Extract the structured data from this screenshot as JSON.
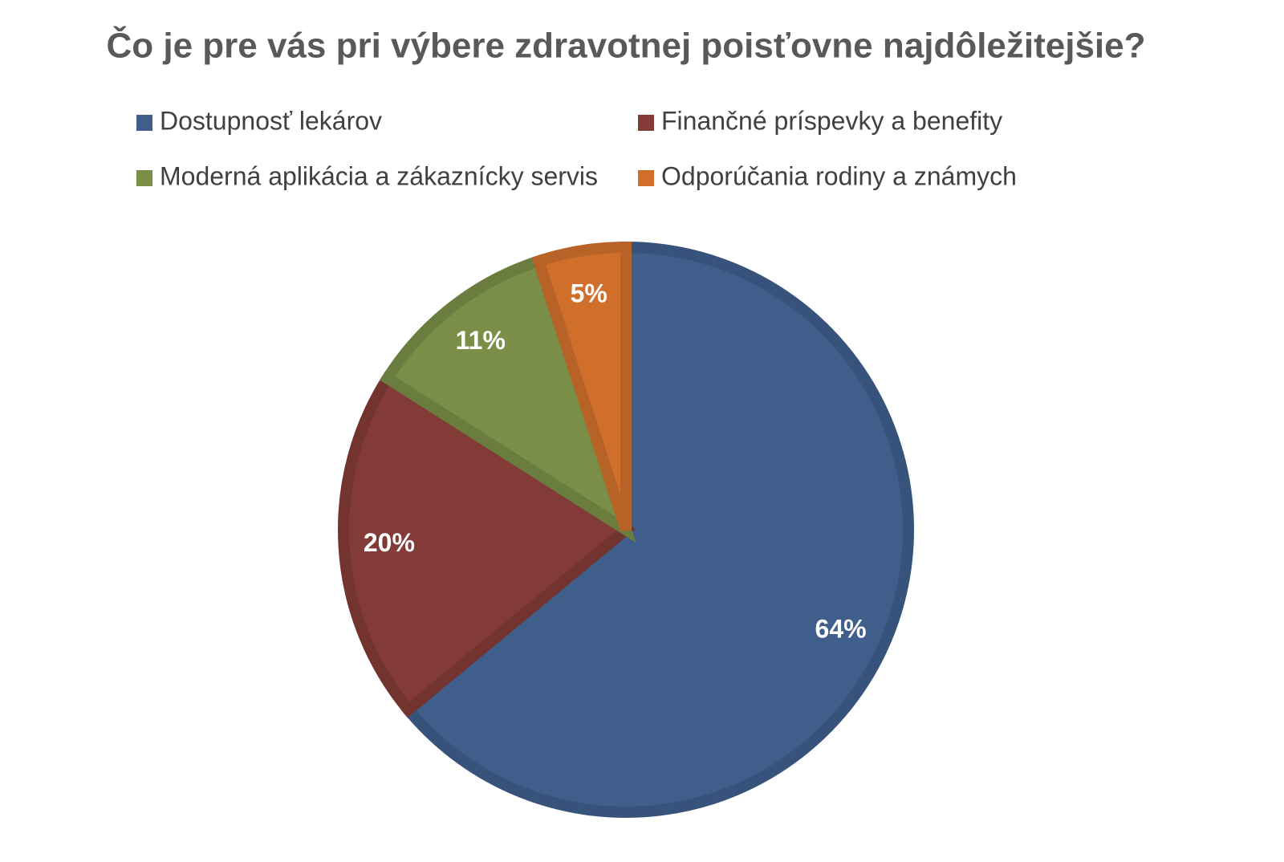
{
  "chart_data": {
    "type": "pie",
    "title": "Čo je pre vás pri výbere zdravotnej poisťovne najdôležitejšie?",
    "categories": [
      "Dostupnosť lekárov",
      "Finančné príspevky a benefity",
      "Moderná aplikácia a zákaznícky servis",
      "Odporúčania rodiny a známych"
    ],
    "values": [
      64,
      20,
      11,
      5
    ],
    "value_labels": [
      "64%",
      "20%",
      "11%",
      "5%"
    ],
    "colors": [
      "#3f5e8c",
      "#833b37",
      "#7a8e47",
      "#d06f2c"
    ],
    "legend": "top"
  }
}
